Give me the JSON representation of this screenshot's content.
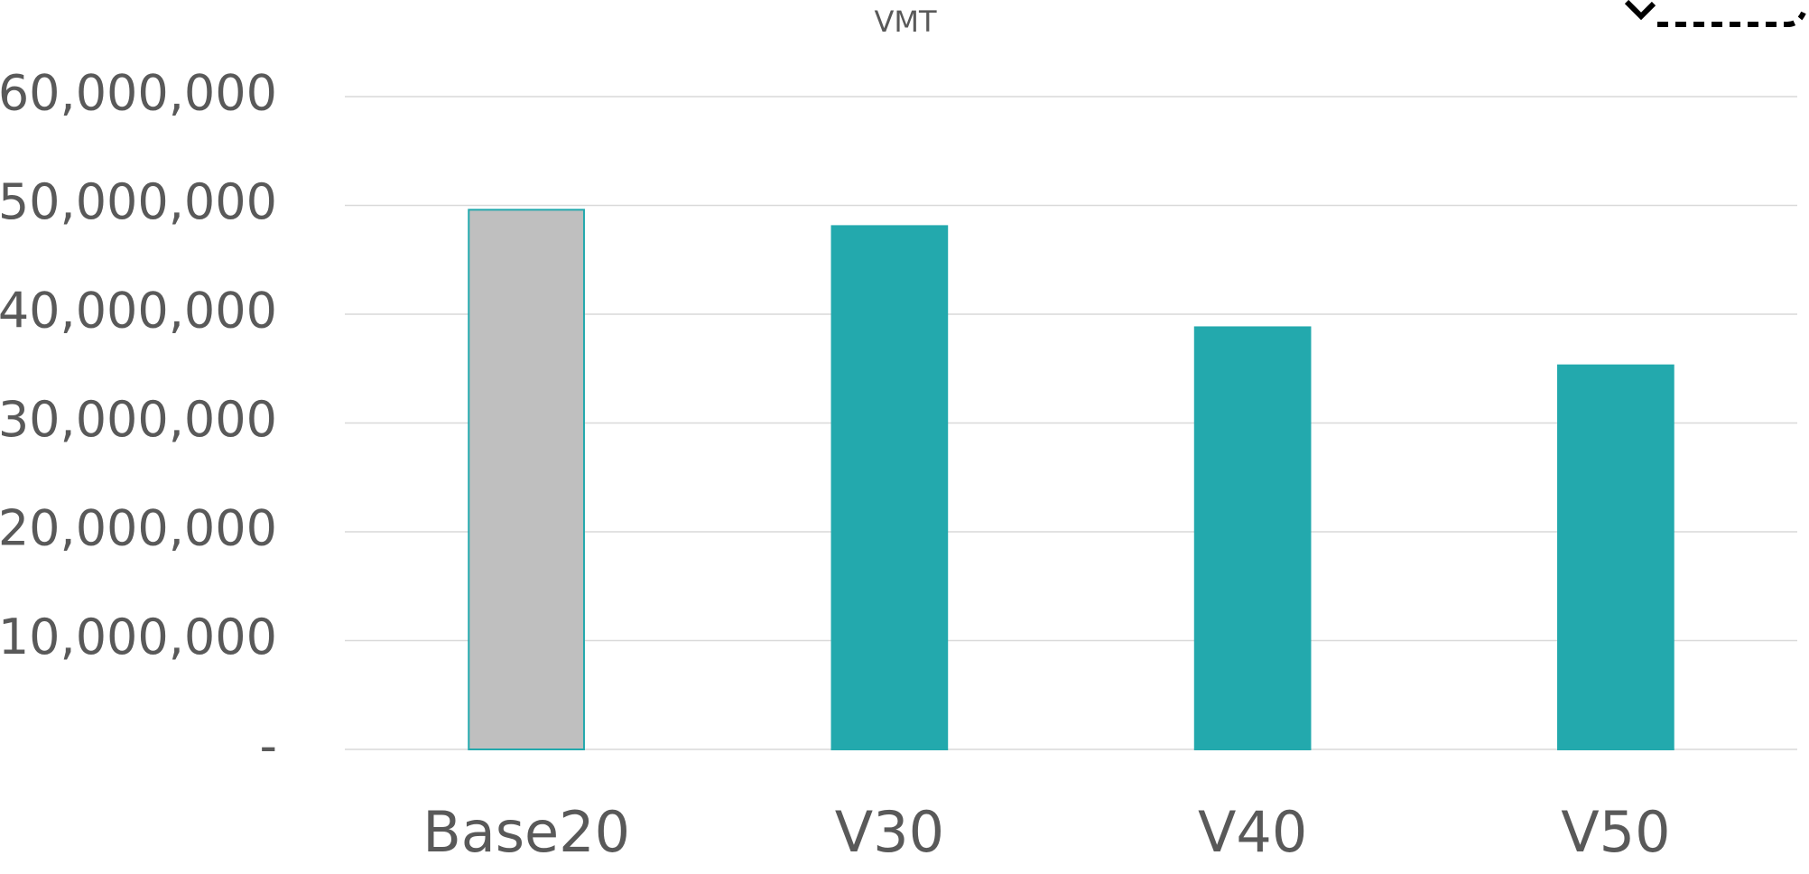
{
  "chart_data": {
    "type": "bar",
    "title": "VMT",
    "categories": [
      "Base20",
      "V30",
      "V40",
      "V50"
    ],
    "values": [
      49600000,
      48100000,
      38800000,
      35300000
    ],
    "colors": [
      "#bfbfbf",
      "#23a9ad",
      "#23a9ad",
      "#23a9ad"
    ],
    "ylim": [
      0,
      60000000
    ],
    "yticks": [
      {
        "value": 0,
        "label": "-"
      },
      {
        "value": 10000000,
        "label": "10,000,000"
      },
      {
        "value": 20000000,
        "label": "20,000,000"
      },
      {
        "value": 30000000,
        "label": "30,000,000"
      },
      {
        "value": 40000000,
        "label": "40,000,000"
      },
      {
        "value": 50000000,
        "label": "50,000,000"
      },
      {
        "value": 60000000,
        "label": "60,000,000"
      }
    ],
    "grid": true
  }
}
